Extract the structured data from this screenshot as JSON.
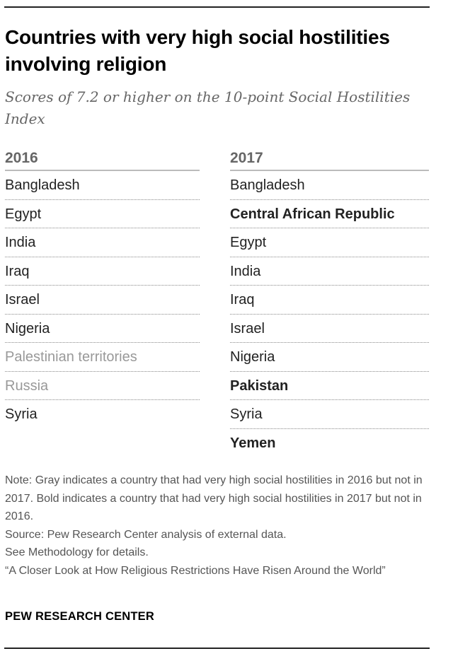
{
  "title": "Countries with very high social hostilities involving religion",
  "subtitle": "Scores of 7.2 or higher on the 10-point Social Hostilities Index",
  "columns": [
    {
      "year": "2016",
      "rows": [
        {
          "name": "Bangladesh",
          "style": "normal"
        },
        {
          "name": "Egypt",
          "style": "normal"
        },
        {
          "name": "India",
          "style": "normal"
        },
        {
          "name": "Iraq",
          "style": "normal"
        },
        {
          "name": "Israel",
          "style": "normal"
        },
        {
          "name": "Nigeria",
          "style": "normal"
        },
        {
          "name": "Palestinian territories",
          "style": "gray"
        },
        {
          "name": "Russia",
          "style": "gray"
        },
        {
          "name": "Syria",
          "style": "normal"
        }
      ]
    },
    {
      "year": "2017",
      "rows": [
        {
          "name": "Bangladesh",
          "style": "normal"
        },
        {
          "name": "Central African Republic",
          "style": "bold"
        },
        {
          "name": "Egypt",
          "style": "normal"
        },
        {
          "name": "India",
          "style": "normal"
        },
        {
          "name": "Iraq",
          "style": "normal"
        },
        {
          "name": "Israel",
          "style": "normal"
        },
        {
          "name": "Nigeria",
          "style": "normal"
        },
        {
          "name": "Pakistan",
          "style": "bold"
        },
        {
          "name": "Syria",
          "style": "normal"
        },
        {
          "name": "Yemen",
          "style": "bold"
        }
      ]
    }
  ],
  "notes": {
    "note": "Note: Gray indicates a country that had very high social hostilities in 2016 but not in 2017. Bold indicates a country that had very high social hostilities in 2017 but not in 2016.",
    "source": "Source: Pew Research Center analysis of external data.",
    "methodology": "See Methodology for details.",
    "report": "“A Closer Look at How Religious Restrictions Have Risen Around the World”"
  },
  "brand": "PEW RESEARCH CENTER",
  "colors": {
    "text": "#222222",
    "gray_country": "#999999",
    "header": "#666666"
  }
}
